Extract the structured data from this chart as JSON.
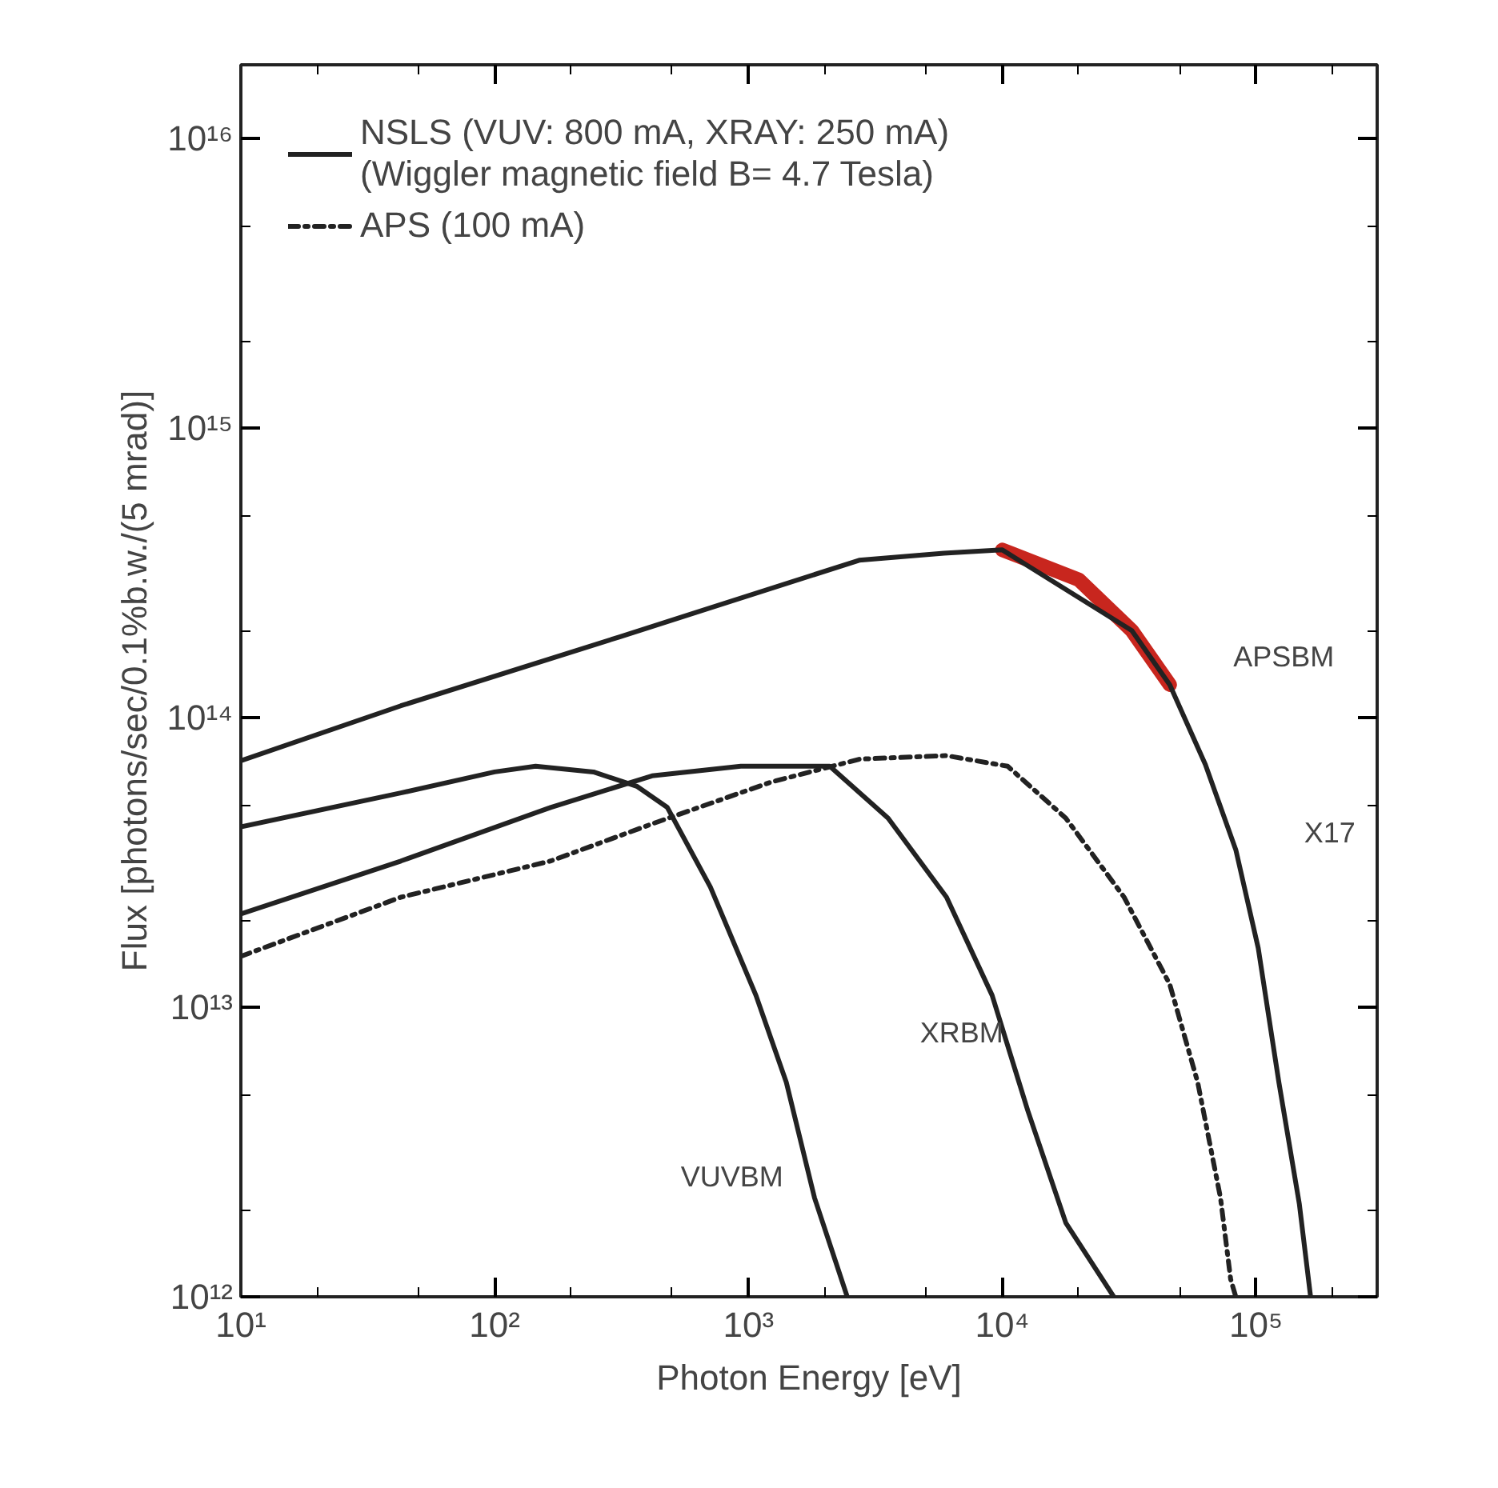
{
  "chart_data": {
    "type": "line",
    "xlabel": "Photon Energy [eV]",
    "ylabel": "Flux [photons/sec/0.1%b.w./(5 mrad)]",
    "log": "xy",
    "grid": false,
    "legend": "top left",
    "marker": "none",
    "xlim": [
      10,
      300000
    ],
    "ylim": [
      1000000000000.0,
      1.8e+16
    ],
    "xticks": [
      {
        "value": 10,
        "label": "10¹"
      },
      {
        "value": 20,
        "label": null
      },
      {
        "value": 50,
        "label": null
      },
      {
        "value": 100,
        "label": "10²"
      },
      {
        "value": 200,
        "label": null
      },
      {
        "value": 500,
        "label": null
      },
      {
        "value": 1000,
        "label": "10³"
      },
      {
        "value": 2000,
        "label": null
      },
      {
        "value": 5000,
        "label": null
      },
      {
        "value": 10000,
        "label": "10⁴"
      },
      {
        "value": 20000,
        "label": null
      },
      {
        "value": 50000,
        "label": null
      },
      {
        "value": 100000,
        "label": "10⁵"
      },
      {
        "value": 200000,
        "label": null
      }
    ],
    "yticks": [
      {
        "value": 1000000000000.0,
        "label": "10¹²"
      },
      {
        "value": 2000000000000.0,
        "label": null
      },
      {
        "value": 5000000000000.0,
        "label": null
      },
      {
        "value": 10000000000000.0,
        "label": "10¹³"
      },
      {
        "value": 20000000000000.0,
        "label": null
      },
      {
        "value": 50000000000000.0,
        "label": null
      },
      {
        "value": 100000000000000.0,
        "label": "10¹⁴"
      },
      {
        "value": 200000000000000.0,
        "label": null
      },
      {
        "value": 500000000000000.0,
        "label": null
      },
      {
        "value": 1000000000000000.0,
        "label": "10¹⁵"
      },
      {
        "value": 2000000000000000.0,
        "label": null
      },
      {
        "value": 5000000000000000.0,
        "label": null
      },
      {
        "value": 1e+16,
        "label": "10¹⁶"
      }
    ],
    "series": [
      {
        "name": "NSLS (VUV: 800 mA, XRAY: 250 mA)\n(Wiggler magnetic field B= 4.7 Tesla)",
        "color": "#222222",
        "line_style": "solid",
        "x": [
          10,
          42.7,
          309,
          2730,
          5890,
          10000,
          32400,
          45700,
          63100,
          83200,
          102000,
          123000,
          148000,
          164000
        ],
        "values": [
          71000000000000.0,
          110000000000000.0,
          190000000000000.0,
          350000000000000.0,
          370000000000000.0,
          380000000000000.0,
          200000000000000.0,
          130000000000000.0,
          69000000000000.0,
          35000000000000.0,
          16000000000000.0,
          5500000000000.0,
          2100000000000.0,
          1000000000000.0
        ]
      },
      {
        "color": "#222222",
        "line_style": "solid",
        "x": [
          10,
          42.7,
          100,
          145,
          245,
          363,
          479,
          708,
          1070,
          1410,
          1820,
          2450
        ],
        "values": [
          42000000000000.0,
          55000000000000.0,
          65000000000000.0,
          68000000000000.0,
          65000000000000.0,
          58000000000000.0,
          49000000000000.0,
          26000000000000.0,
          11000000000000.0,
          5500000000000.0,
          2200000000000.0,
          1000000000000.0
        ]
      },
      {
        "color": "#222222",
        "line_style": "solid",
        "x": [
          10,
          42.7,
          166,
          417,
          933,
          2090,
          3550,
          6030,
          9120,
          12600,
          17800,
          27500
        ],
        "values": [
          21000000000000.0,
          32000000000000.0,
          49000000000000.0,
          63000000000000.0,
          68000000000000.0,
          68000000000000.0,
          45000000000000.0,
          24000000000000.0,
          11000000000000.0,
          4400000000000.0,
          1800000000000.0,
          1000000000000.0
        ]
      },
      {
        "name": "APS (100 mA)",
        "color": "#222222",
        "line_style": "dashdot",
        "x": [
          10,
          42.7,
          166,
          417,
          1230,
          2750,
          6030,
          10500,
          17800,
          30200,
          45700,
          58900,
          72400,
          79400,
          83200
        ],
        "values": [
          15000000000000.0,
          24000000000000.0,
          32000000000000.0,
          43000000000000.0,
          60000000000000.0,
          72000000000000.0,
          74000000000000.0,
          68000000000000.0,
          45000000000000.0,
          24000000000000.0,
          12000000000000.0,
          5500000000000.0,
          2200000000000.0,
          1150000000000.0,
          1000000000000.0
        ]
      },
      {
        "color": "#c8261e",
        "line_style": "solid",
        "x": [
          10000,
          20000,
          32400,
          45700
        ],
        "values": [
          380000000000000.0,
          300000000000000.0,
          200000000000000.0,
          130000000000000.0
        ]
      }
    ],
    "annotations": [
      "VUVBM",
      "XRBM",
      "APSBM",
      "X17"
    ]
  }
}
